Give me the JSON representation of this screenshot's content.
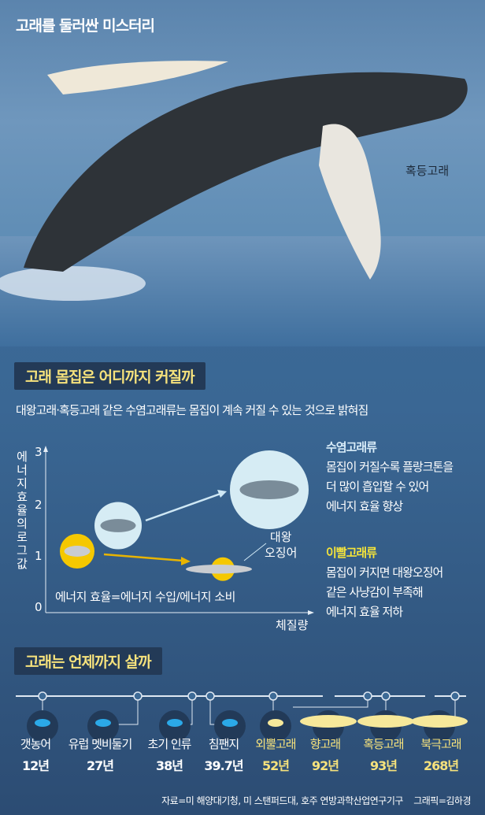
{
  "title": "고래를 둘러싼 미스터리",
  "photo_label": "혹등고래",
  "section1": {
    "header": "고래 몸집은 어디까지 커질까",
    "subtitle": "대왕고래·혹등고래 같은 수염고래류는 몸집이 계속 커질 수 있는 것으로 밝혀짐",
    "squid_label_1": "대왕",
    "squid_label_2": "오징어",
    "formula": "에너지 효율=에너지 수입/에너지 소비",
    "baleen": {
      "title": "수염고래류",
      "lines": [
        "몸집이 커질수록 플랑크톤을",
        "더 많이 흡입할 수 있어",
        "에너지 효율 향상"
      ]
    },
    "toothed": {
      "title": "이빨고래류",
      "lines": [
        "몸집이 커지면 대왕오징어",
        "같은 사냥감이 부족해",
        "에너지 효율 저하"
      ]
    }
  },
  "chart_data": {
    "type": "scatter",
    "ylabel": "에너지 효율의 로그값",
    "xlabel": "체질량",
    "yticks": [
      "0",
      "1",
      "2",
      "3"
    ],
    "ylim": [
      0,
      3
    ],
    "grid": false,
    "colors": {
      "baleen": "#d6ecf4",
      "toothed": "#f5c800",
      "arrow_baleen": "#cfe8f5",
      "arrow_toothed": "#e8b400"
    },
    "series": [
      {
        "name": "수염고래류",
        "points": [
          {
            "x": "small",
            "y": 1.7
          },
          {
            "x": "large",
            "y": 2.4
          }
        ]
      },
      {
        "name": "이빨고래류",
        "points": [
          {
            "x": "small",
            "y": 1.2
          },
          {
            "x": "large",
            "y": 0.85
          }
        ]
      }
    ]
  },
  "section2": {
    "header": "고래는 언제까지 살까",
    "items": [
      {
        "name": "갯농어",
        "years": "12년",
        "icon": "fish-icon",
        "highlight": false
      },
      {
        "name": "유럽 멧비둘기",
        "years": "27년",
        "icon": "dove-icon",
        "highlight": false
      },
      {
        "name": "초기 인류",
        "years": "38년",
        "icon": "human-icon",
        "highlight": false
      },
      {
        "name": "침팬지",
        "years": "39.7년",
        "icon": "chimpanzee-icon",
        "highlight": false
      },
      {
        "name": "외뿔고래",
        "years": "52년",
        "icon": "narwhal-icon",
        "highlight": true
      },
      {
        "name": "향고래",
        "years": "92년",
        "icon": "sperm-whale-icon",
        "highlight": true
      },
      {
        "name": "혹등고래",
        "years": "93년",
        "icon": "humpback-whale-icon",
        "highlight": true
      },
      {
        "name": "북극고래",
        "years": "268년",
        "icon": "bowhead-whale-icon",
        "highlight": true
      }
    ]
  },
  "source": "자료=미 해양대기청, 미 스탠퍼드대, 호주 연방과학산업연구기구",
  "credit": "그래픽=김하경"
}
